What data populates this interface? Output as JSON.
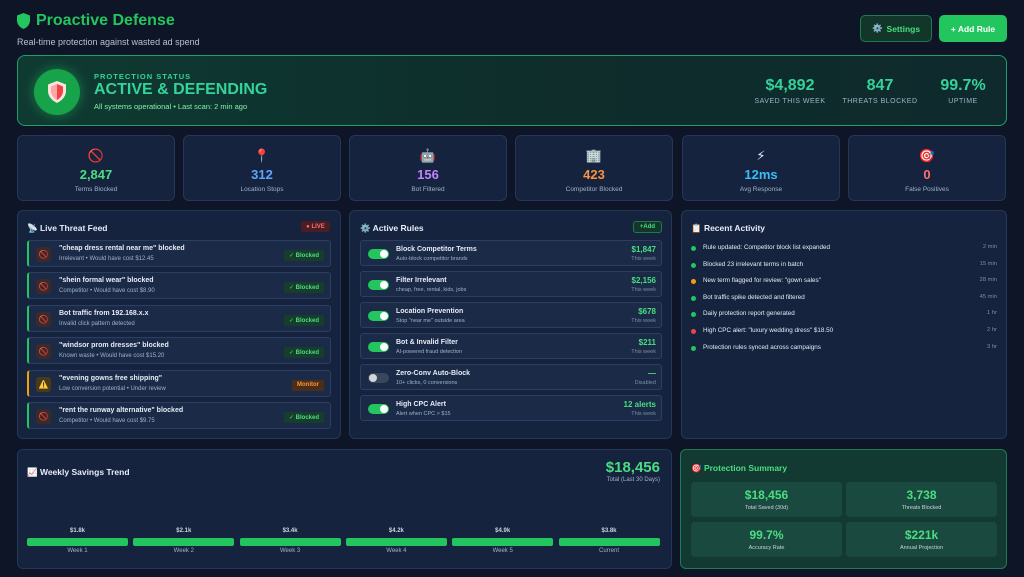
{
  "header": {
    "title": "Proactive Defense",
    "subtitle": "Real-time protection against wasted ad spend",
    "settings_label": "Settings",
    "add_rule_label": "+ Add Rule"
  },
  "status": {
    "label": "PROTECTION STATUS",
    "title": "ACTIVE & DEFENDING",
    "subtitle": "All systems operational • Last scan: 2 min ago",
    "stats": [
      {
        "value": "$4,892",
        "label": "SAVED THIS WEEK"
      },
      {
        "value": "847",
        "label": "THREATS BLOCKED"
      },
      {
        "value": "99.7%",
        "label": "UPTIME"
      }
    ]
  },
  "metrics": [
    {
      "icon": "🚫",
      "icon_name": "prohibited-icon",
      "value": "2,847",
      "label": "Terms Blocked",
      "color": "#4ade80"
    },
    {
      "icon": "📍",
      "icon_name": "location-pin-icon",
      "value": "312",
      "label": "Location Stops",
      "color": "#60a5fa"
    },
    {
      "icon": "🤖",
      "icon_name": "robot-icon",
      "value": "156",
      "label": "Bot Filtered",
      "color": "#c084fc"
    },
    {
      "icon": "🏢",
      "icon_name": "building-icon",
      "value": "423",
      "label": "Competitor Blocked",
      "color": "#fb923c"
    },
    {
      "icon": "⚡",
      "icon_name": "lightning-icon",
      "value": "12ms",
      "label": "Avg Response",
      "color": "#38bdf8"
    },
    {
      "icon": "🎯",
      "icon_name": "target-icon",
      "value": "0",
      "label": "False Positives",
      "color": "#f87171"
    }
  ],
  "threat_feed": {
    "title": "📡 Live Threat Feed",
    "live_label": "● LIVE",
    "items": [
      {
        "icon": "🚫",
        "title": "\"cheap dress rental near me\" blocked",
        "sub": "Irrelevant • Would have cost $12.45",
        "badge": "✓ Blocked",
        "warn": false
      },
      {
        "icon": "🚫",
        "title": "\"shein formal wear\" blocked",
        "sub": "Competitor • Would have cost $8.90",
        "badge": "✓ Blocked",
        "warn": false
      },
      {
        "icon": "🚫",
        "title": "Bot traffic from 192.168.x.x",
        "sub": "Invalid click pattern detected",
        "badge": "✓ Blocked",
        "warn": false
      },
      {
        "icon": "🚫",
        "title": "\"windsor prom dresses\" blocked",
        "sub": "Known waste • Would have cost $15.20",
        "badge": "✓ Blocked",
        "warn": false
      },
      {
        "icon": "⚠️",
        "title": "\"evening gowns free shipping\"",
        "sub": "Low conversion potential • Under review",
        "badge": "Monitor",
        "warn": true
      },
      {
        "icon": "🚫",
        "title": "\"rent the runway alternative\" blocked",
        "sub": "Competitor • Would have cost $9.75",
        "badge": "✓ Blocked",
        "warn": false
      }
    ]
  },
  "active_rules": {
    "title": "⚙️ Active Rules",
    "add_label": "+Add",
    "items": [
      {
        "title": "Block Competitor Terms",
        "sub": "Auto-block competitor brands",
        "value": "$1,847",
        "period": "This week",
        "on": true
      },
      {
        "title": "Filter Irrelevant",
        "sub": "cheap, free, rental, kids, jobs",
        "value": "$2,156",
        "period": "This week",
        "on": true
      },
      {
        "title": "Location Prevention",
        "sub": "Stop \"near me\" outside area",
        "value": "$678",
        "period": "This week",
        "on": true
      },
      {
        "title": "Bot & Invalid Filter",
        "sub": "AI-powered fraud detection",
        "value": "$211",
        "period": "This week",
        "on": true
      },
      {
        "title": "Zero-Conv Auto-Block",
        "sub": "10+ clicks, 0 conversions",
        "value": "—",
        "period": "Disabled",
        "on": false
      },
      {
        "title": "High CPC Alert",
        "sub": "Alert when CPC > $15",
        "value": "12 alerts",
        "period": "This week",
        "on": true
      }
    ]
  },
  "recent_activity": {
    "title": "📋 Recent Activity",
    "items": [
      {
        "text": "Rule updated: Competitor block list expanded",
        "time": "2 min",
        "dot": "#22c55e"
      },
      {
        "text": "Blocked 23 irrelevant terms in batch",
        "time": "15 min",
        "dot": "#22c55e"
      },
      {
        "text": "New term flagged for review: \"gown sales\"",
        "time": "28 min",
        "dot": "#f59e0b"
      },
      {
        "text": "Bot traffic spike detected and filtered",
        "time": "45 min",
        "dot": "#22c55e"
      },
      {
        "text": "Daily protection report generated",
        "time": "1 hr",
        "dot": "#22c55e"
      },
      {
        "text": "High CPC alert: \"luxury wedding dress\" $18.50",
        "time": "2 hr",
        "dot": "#ef4444"
      },
      {
        "text": "Protection rules synced across campaigns",
        "time": "3 hr",
        "dot": "#22c55e"
      }
    ]
  },
  "trend": {
    "title": "📈 Weekly Savings Trend",
    "total": "$18,456",
    "total_label": "Total (Last 30 Days)"
  },
  "chart_data": {
    "type": "bar",
    "categories": [
      "Week 1",
      "Week 2",
      "Week 3",
      "Week 4",
      "Week 5",
      "Current"
    ],
    "values": [
      1.8,
      2.1,
      3.4,
      4.2,
      4.9,
      3.8
    ],
    "value_labels": [
      "$1.8k",
      "$2.1k",
      "$3.4k",
      "$4.2k",
      "$4.9k",
      "$3.8k"
    ],
    "title": "📈 Weekly Savings Trend"
  },
  "summary": {
    "title": "🎯 Protection Summary",
    "cards": [
      {
        "value": "$18,456",
        "label": "Total Saved (30d)"
      },
      {
        "value": "3,738",
        "label": "Threats Blocked"
      },
      {
        "value": "99.7%",
        "label": "Accuracy Rate"
      },
      {
        "value": "$221k",
        "label": "Annual Projection"
      }
    ]
  },
  "colors": {
    "accent": "#22c55e",
    "background": "#0d1526",
    "panel": "#15233f"
  }
}
